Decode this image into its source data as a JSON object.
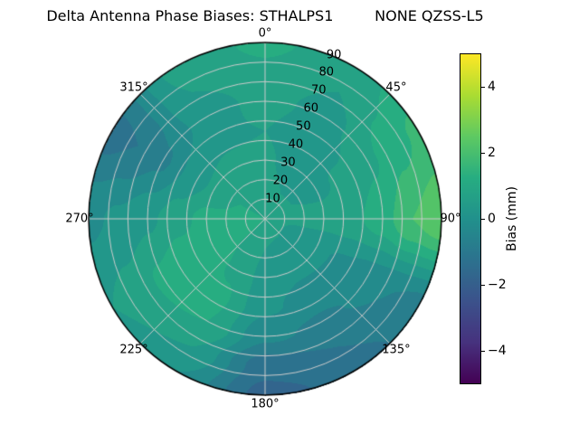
{
  "colors": {
    "background": "#ffffff",
    "grid_line": "#cccccc",
    "axis_border": "#000000",
    "text": "#000000"
  },
  "chart_data": {
    "type": "heatmap",
    "projection": "polar",
    "title": "Delta Antenna Phase Biases: STHALPS1         NONE QZSS-L5",
    "angular_tick_labels": [
      {
        "deg": 0,
        "label": "0°"
      },
      {
        "deg": 45,
        "label": "45°"
      },
      {
        "deg": 90,
        "label": "90°"
      },
      {
        "deg": 135,
        "label": "135°"
      },
      {
        "deg": 180,
        "label": "180°"
      },
      {
        "deg": 225,
        "label": "225°"
      },
      {
        "deg": 270,
        "label": "270°"
      },
      {
        "deg": 315,
        "label": "315°"
      }
    ],
    "radial_tick_labels": [
      10,
      20,
      30,
      40,
      50,
      60,
      70,
      80,
      90
    ],
    "radial_label_angle_deg": 23,
    "radial_max": 90,
    "grid": {
      "angular_step_deg": 45,
      "radial_step": 10
    },
    "colorbar": {
      "label": "Bias (mm)",
      "tick_values": [
        4,
        2,
        0,
        -2,
        -4
      ],
      "tick_labels": [
        "4",
        "2",
        "0",
        "−2",
        "−4"
      ],
      "range": [
        -5,
        5
      ],
      "colormap": "viridis",
      "stops": [
        {
          "t": 0.0,
          "c": "#440154"
        },
        {
          "t": 0.125,
          "c": "#46327e"
        },
        {
          "t": 0.25,
          "c": "#3b528b"
        },
        {
          "t": 0.375,
          "c": "#2c728e"
        },
        {
          "t": 0.5,
          "c": "#21918c"
        },
        {
          "t": 0.625,
          "c": "#27ad81"
        },
        {
          "t": 0.75,
          "c": "#5ec962"
        },
        {
          "t": 0.875,
          "c": "#aadc32"
        },
        {
          "t": 1.0,
          "c": "#fde725"
        }
      ]
    },
    "contour_step_mm": 0.5,
    "azimuth_deg": [
      0,
      30,
      60,
      90,
      120,
      150,
      180,
      210,
      240,
      270,
      300,
      330
    ],
    "zenith_deg": [
      0,
      15,
      30,
      45,
      60,
      75,
      90
    ],
    "values_mm": [
      [
        1.0,
        1.0,
        1.0,
        1.0,
        1.0,
        1.0,
        1.0,
        1.0,
        1.0,
        1.0,
        1.0,
        1.0
      ],
      [
        0.8,
        0.5,
        0.5,
        0.6,
        0.3,
        0.4,
        0.5,
        0.8,
        1.1,
        1.1,
        1.0,
        0.9
      ],
      [
        0.6,
        0.2,
        0.4,
        0.7,
        0.1,
        0.1,
        0.3,
        0.9,
        1.3,
        1.2,
        0.6,
        0.7
      ],
      [
        0.5,
        0.0,
        0.6,
        0.9,
        -0.1,
        -0.2,
        0.1,
        1.1,
        1.4,
        0.8,
        0.1,
        0.4
      ],
      [
        0.7,
        0.3,
        0.9,
        1.3,
        -0.3,
        -0.6,
        -0.4,
        1.0,
        1.1,
        0.4,
        -0.6,
        0.2
      ],
      [
        0.9,
        0.5,
        1.3,
        2.0,
        -0.5,
        -1.0,
        -1.3,
        0.5,
        0.7,
        0.1,
        -1.0,
        0.5
      ],
      [
        1.1,
        0.7,
        1.6,
        2.4,
        -0.7,
        -1.3,
        -1.7,
        0.0,
        0.5,
        -0.1,
        -1.2,
        0.7
      ]
    ]
  }
}
